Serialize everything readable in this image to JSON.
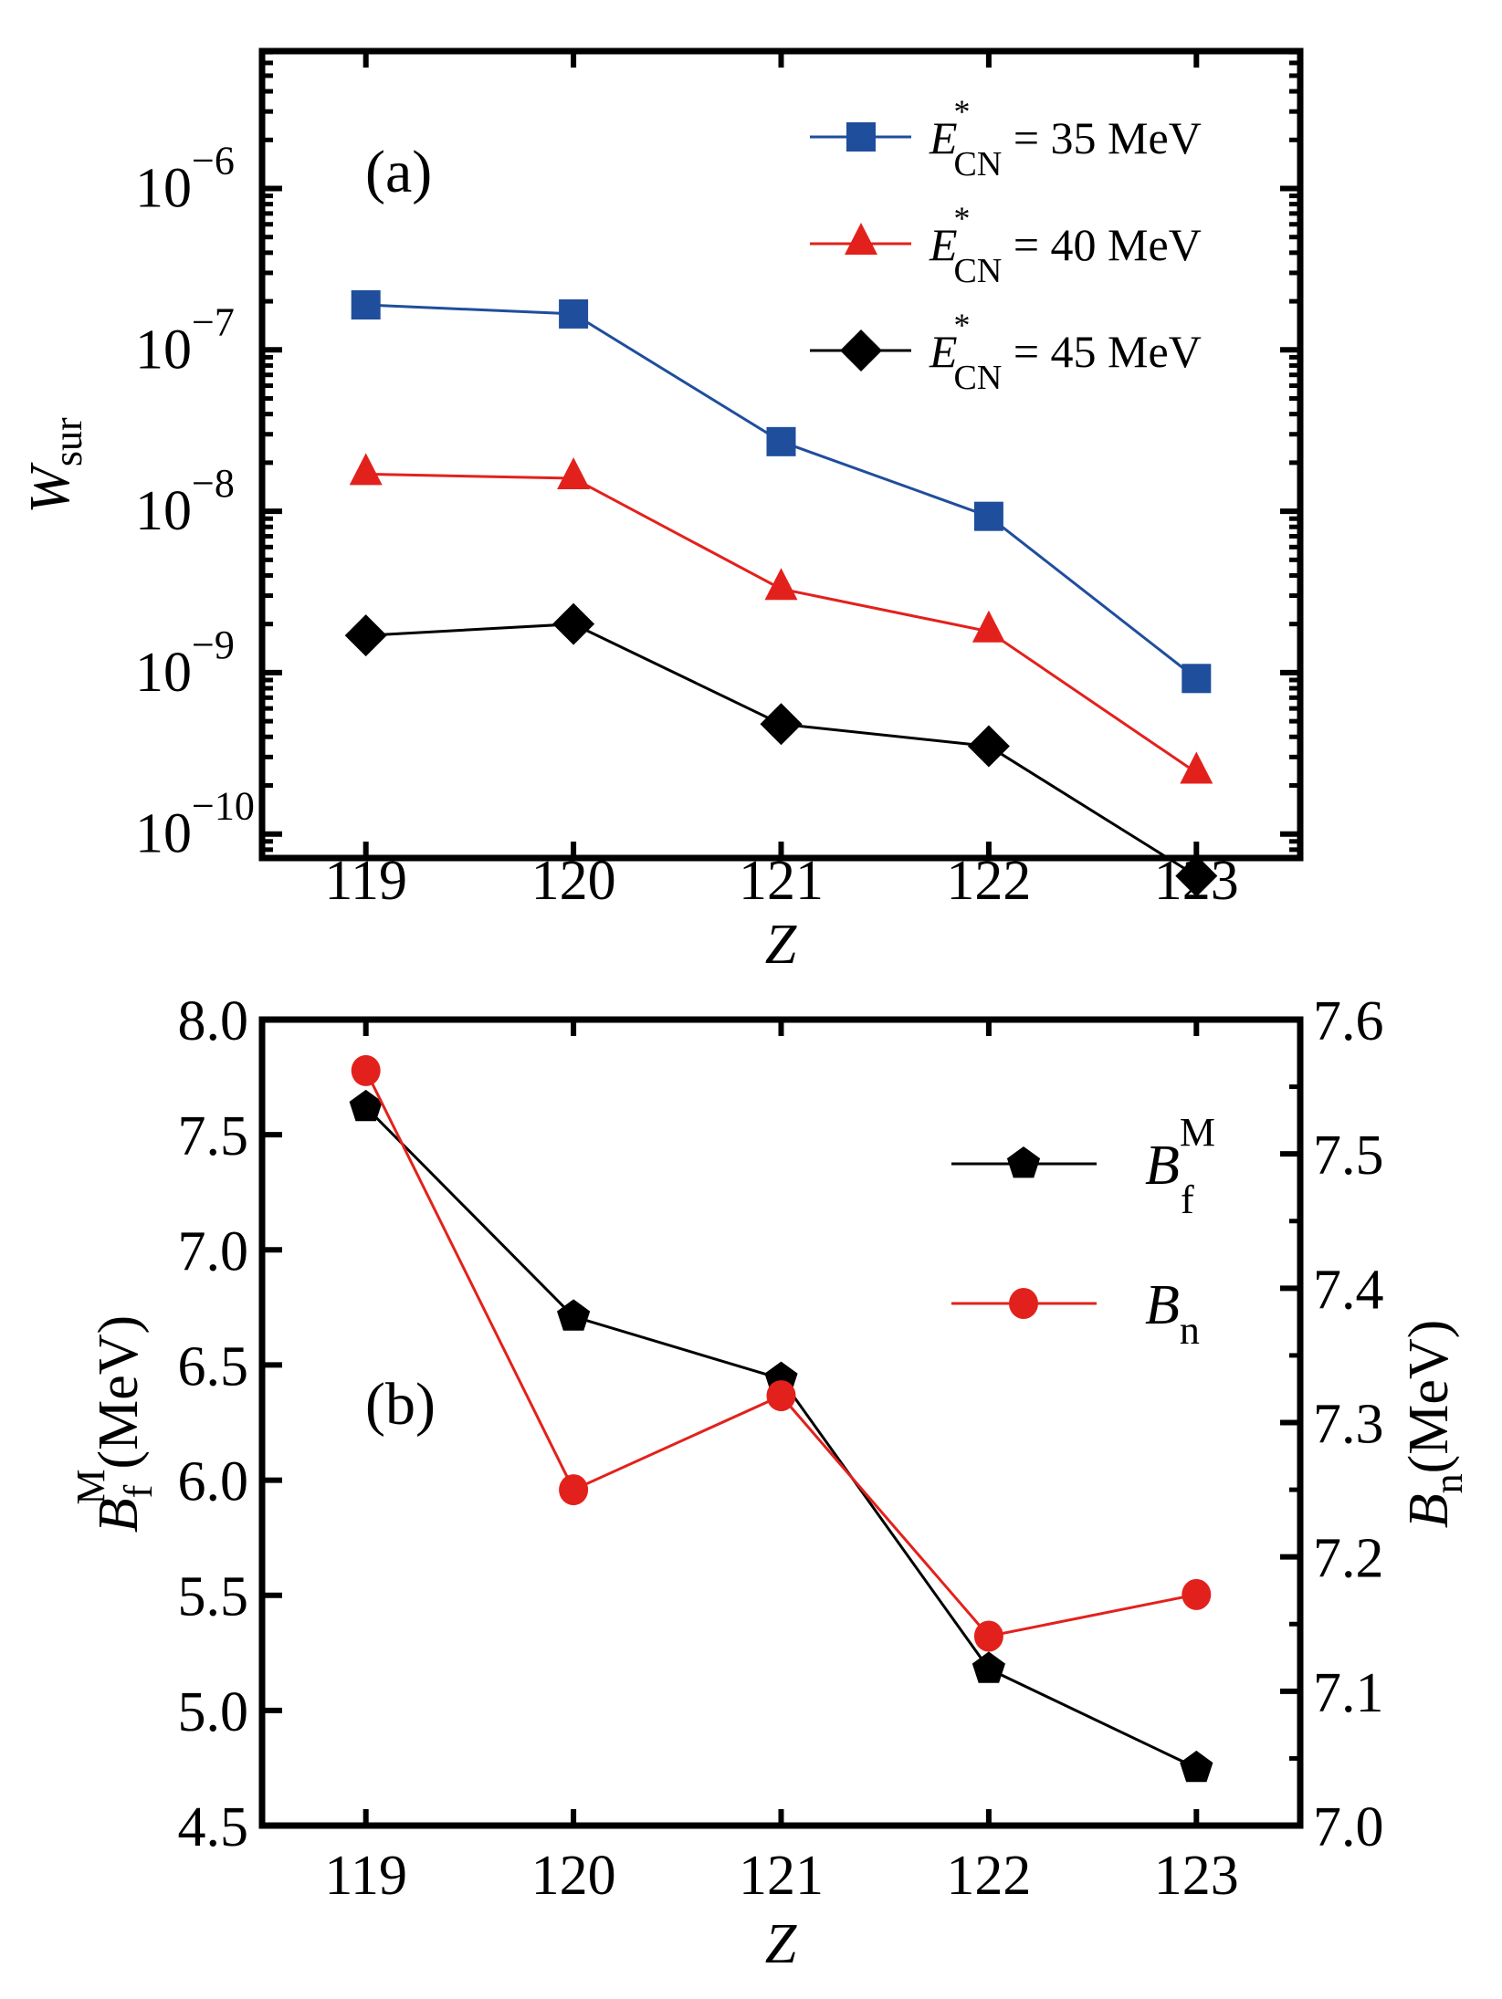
{
  "chart_data": [
    {
      "panel": "a",
      "type": "line",
      "yscale": "log",
      "panel_label": "(a)",
      "xlabel": "Z",
      "ylabel_main": "W",
      "ylabel_sub": "sur",
      "x": [
        119,
        120,
        121,
        122,
        123
      ],
      "xlim": [
        118.5,
        123.5
      ],
      "x_tick_labels": [
        "119",
        "120",
        "121",
        "122",
        "123"
      ],
      "ylim": [
        7.1e-11,
        7.1e-06
      ],
      "y_ticks": [
        {
          "value": 1e-06,
          "base": "10",
          "exp": "−6"
        },
        {
          "value": 1e-07,
          "base": "10",
          "exp": "−7"
        },
        {
          "value": 1e-08,
          "base": "10",
          "exp": "−8"
        },
        {
          "value": 1e-09,
          "base": "10",
          "exp": "−9"
        },
        {
          "value": 1e-10,
          "base": "10",
          "exp": "−10"
        }
      ],
      "legend_position": "top-right",
      "series": [
        {
          "name": "E*_CN = 35 MeV",
          "label_main": "E",
          "label_sup": "*",
          "label_sub": "CN",
          "label_rest": " = 35 MeV",
          "marker": "square",
          "color": "#1f4e9c",
          "values": [
            1.9e-07,
            1.67e-07,
            2.7e-08,
            9.3e-09,
            9.2e-10
          ]
        },
        {
          "name": "E*_CN = 40 MeV",
          "label_main": "E",
          "label_sup": "*",
          "label_sub": "CN",
          "label_rest": " = 40 MeV",
          "marker": "triangle",
          "color": "#e3211c",
          "values": [
            1.7e-08,
            1.6e-08,
            3.3e-09,
            1.8e-09,
            2.4e-10
          ]
        },
        {
          "name": "E*_CN = 45 MeV",
          "label_main": "E",
          "label_sup": "*",
          "label_sub": "CN",
          "label_rest": " = 45 MeV",
          "marker": "diamond",
          "color": "#000000",
          "values": [
            1.7e-09,
            2e-09,
            4.8e-10,
            3.5e-10,
            5.5e-11
          ]
        }
      ]
    },
    {
      "panel": "b",
      "type": "line",
      "panel_label": "(b)",
      "xlabel": "Z",
      "x": [
        119,
        120,
        121,
        122,
        123
      ],
      "xlim": [
        118.5,
        123.5
      ],
      "x_tick_labels": [
        "119",
        "120",
        "121",
        "122",
        "123"
      ],
      "left_axis": {
        "label_main": "B",
        "label_sup": "M",
        "label_sub": "f",
        "label_rest": "(MeV)",
        "ylim": [
          4.5,
          8.0
        ],
        "ticks": [
          "4.5",
          "5.0",
          "5.5",
          "6.0",
          "6.5",
          "7.0",
          "7.5",
          "8.0"
        ]
      },
      "right_axis": {
        "label_main": "B",
        "label_sub": "n",
        "label_rest": "(MeV)",
        "ylim": [
          7.0,
          7.6
        ],
        "ticks": [
          "7.0",
          "7.1",
          "7.2",
          "7.3",
          "7.4",
          "7.5",
          "7.6"
        ]
      },
      "legend_position": "top-right",
      "series": [
        {
          "name": "B_f^M",
          "label_main": "B",
          "label_sup": "M",
          "label_sub": "f",
          "axis": "left",
          "marker": "pentagon",
          "color": "#000000",
          "values": [
            7.62,
            6.71,
            6.44,
            5.18,
            4.75
          ]
        },
        {
          "name": "B_n",
          "label_main": "B",
          "label_sub": "n",
          "axis": "right",
          "marker": "circle",
          "color": "#e3211c",
          "values": [
            7.562,
            7.25,
            7.32,
            7.141,
            7.172
          ]
        }
      ]
    }
  ]
}
